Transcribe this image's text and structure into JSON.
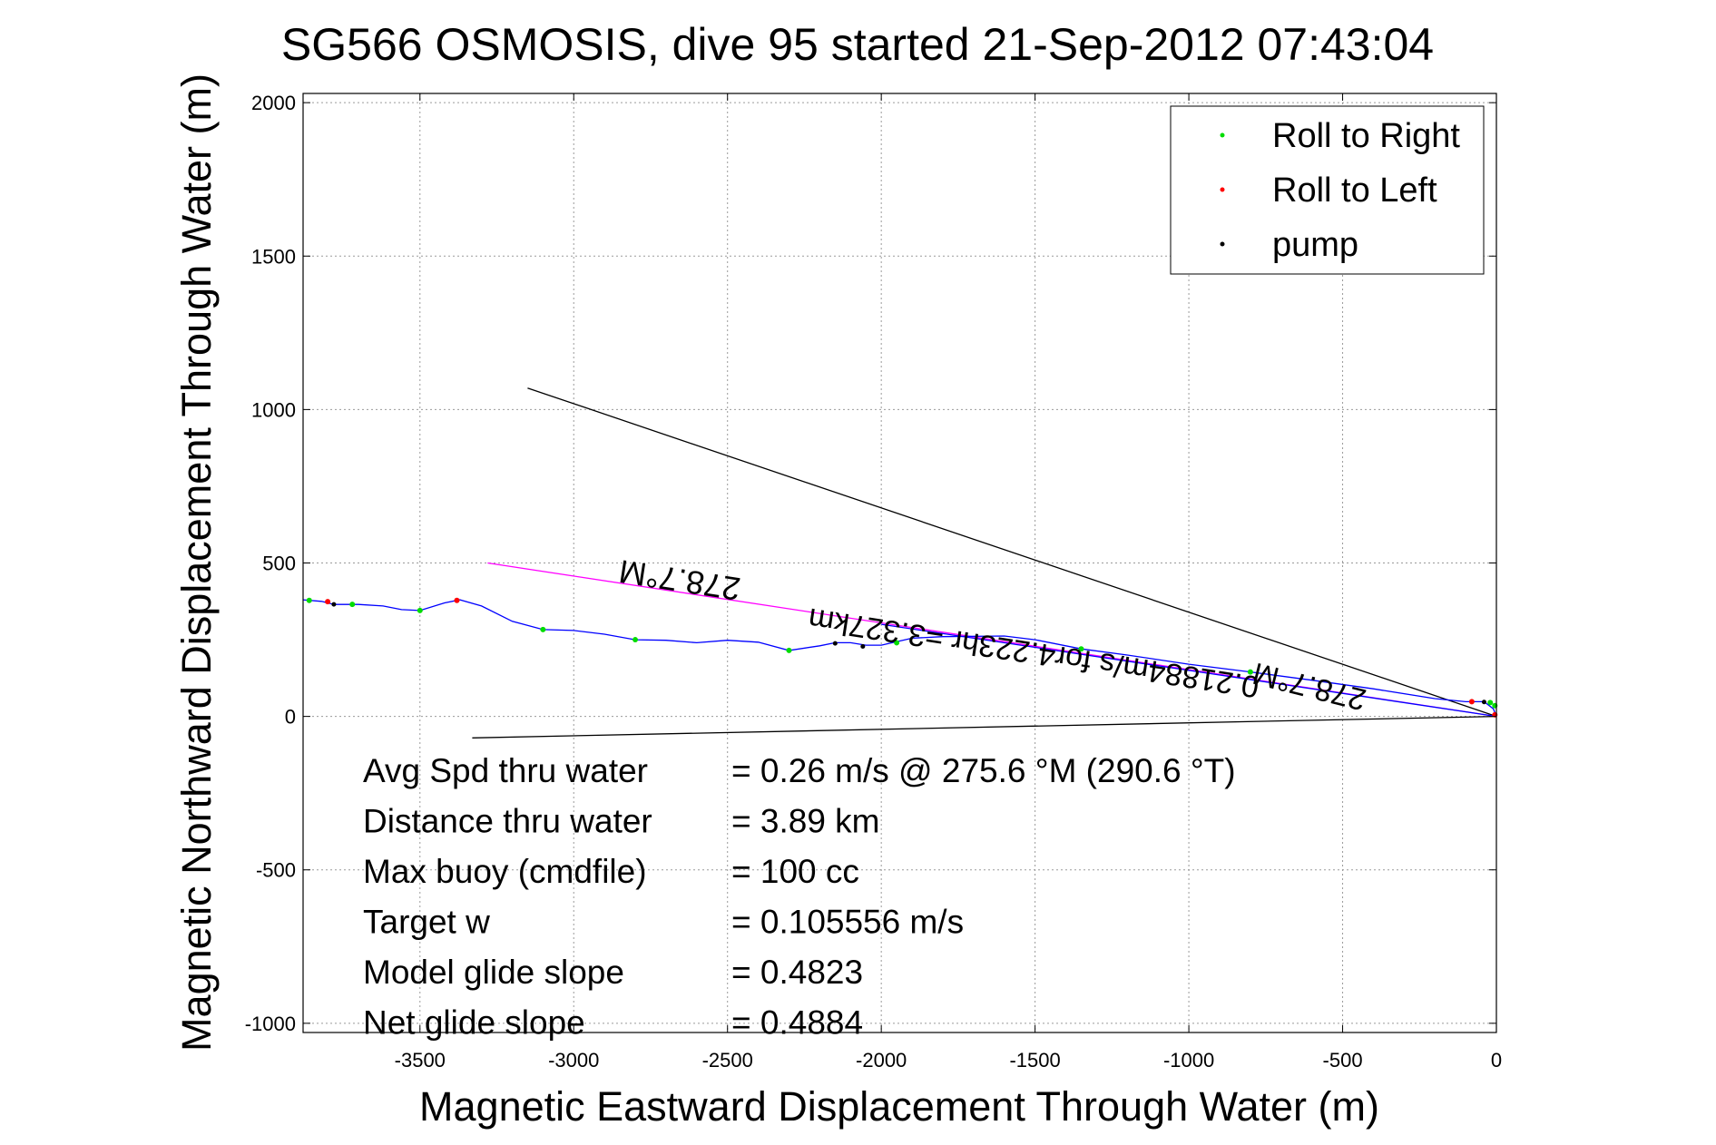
{
  "chart_data": {
    "type": "scatter",
    "title": "SG566 OSMOSIS, dive 95 started 21-Sep-2012 07:43:04",
    "xlabel": "Magnetic Eastward Displacement Through Water (m)",
    "ylabel": "Magnetic Northward Displacement Through Water (m)",
    "xlim": [
      -3880,
      0
    ],
    "ylim": [
      -1030,
      2030
    ],
    "xticks": [
      -3500,
      -3000,
      -2500,
      -2000,
      -1500,
      -1000,
      -500,
      0
    ],
    "yticks": [
      -1000,
      -500,
      0,
      500,
      1000,
      1500,
      2000
    ],
    "xtick_labels": [
      "-3500",
      "-3000",
      "-2500",
      "-2000",
      "-1500",
      "-1000",
      "-500",
      "0"
    ],
    "ytick_labels": [
      "-1000",
      "-500",
      "0",
      "500",
      "1000",
      "1500",
      "2000"
    ],
    "grid": true,
    "legend": {
      "position": "top-right",
      "entries": [
        {
          "label": "Roll to Right",
          "color": "#00dd00"
        },
        {
          "label": "Roll to Left",
          "color": "#ff0000"
        },
        {
          "label": "pump",
          "color": "#000000"
        }
      ]
    },
    "track": {
      "color": "#0000ff",
      "points": [
        [
          -3880,
          380
        ],
        [
          -3820,
          375
        ],
        [
          -3780,
          365
        ],
        [
          -3700,
          365
        ],
        [
          -3620,
          360
        ],
        [
          -3560,
          348
        ],
        [
          -3500,
          345
        ],
        [
          -3420,
          370
        ],
        [
          -3370,
          380
        ],
        [
          -3300,
          360
        ],
        [
          -3200,
          310
        ],
        [
          -3100,
          283
        ],
        [
          -3000,
          280
        ],
        [
          -2900,
          268
        ],
        [
          -2800,
          250
        ],
        [
          -2700,
          248
        ],
        [
          -2600,
          240
        ],
        [
          -2500,
          248
        ],
        [
          -2400,
          242
        ],
        [
          -2300,
          215
        ],
        [
          -2200,
          230
        ],
        [
          -2150,
          240
        ],
        [
          -2100,
          240
        ],
        [
          -2050,
          232
        ],
        [
          -2000,
          232
        ],
        [
          -1900,
          255
        ],
        [
          -1800,
          260
        ],
        [
          -1600,
          262
        ],
        [
          -1500,
          250
        ],
        [
          -1350,
          220
        ],
        [
          -1200,
          200
        ],
        [
          -1000,
          170
        ],
        [
          -800,
          145
        ],
        [
          -600,
          118
        ],
        [
          -400,
          90
        ],
        [
          -200,
          58
        ],
        [
          -100,
          48
        ],
        [
          -40,
          48
        ],
        [
          -10,
          25
        ],
        [
          0,
          0
        ]
      ]
    },
    "roll_right_points": [
      [
        -3860,
        378
      ],
      [
        -3720,
        365
      ],
      [
        -3500,
        345
      ],
      [
        -3100,
        283
      ],
      [
        -2800,
        250
      ],
      [
        -2300,
        215
      ],
      [
        -1950,
        240
      ],
      [
        -1350,
        220
      ],
      [
        -800,
        145
      ],
      [
        -20,
        45
      ],
      [
        -5,
        35
      ]
    ],
    "roll_left_points": [
      [
        -3800,
        374
      ],
      [
        -3380,
        378
      ],
      [
        -80,
        48
      ],
      [
        -5,
        5
      ]
    ],
    "pump_points": [
      [
        -3780,
        365
      ],
      [
        -2150,
        238
      ],
      [
        -2060,
        228
      ],
      [
        -40,
        47
      ]
    ],
    "lines": [
      {
        "name": "heading-line-upper",
        "color": "#000000",
        "from": [
          0,
          0
        ],
        "to": [
          -3150,
          1070
        ]
      },
      {
        "name": "heading-line-lower",
        "color": "#000000",
        "from": [
          0,
          0
        ],
        "to": [
          -3330,
          -70
        ]
      },
      {
        "name": "heading-line-magenta",
        "color": "#ff00ff",
        "from": [
          0,
          0
        ],
        "to": [
          -3280,
          500
        ]
      },
      {
        "name": "heading-line-blue",
        "color": "#0000ff",
        "from": [
          0,
          0
        ],
        "to": [
          -2000,
          300
        ]
      }
    ],
    "annotations": [
      {
        "text": "278.7°M",
        "x": -2650,
        "y": 480,
        "rotate": 188.7
      },
      {
        "text": "0.21884m/s for4.223hr =3.327km",
        "x": -1500,
        "y": 240,
        "rotate": 188.7
      },
      {
        "text": "278.7°M",
        "x": -600,
        "y": 130,
        "rotate": 194
      }
    ],
    "stats": [
      {
        "label": "Avg Spd thru water",
        "value": "=  0.26 m/s @ 275.6 °M (290.6 °T)"
      },
      {
        "label": "Distance thru water",
        "value": "=  3.89 km"
      },
      {
        "label": "Max buoy (cmdfile)",
        "value": "= 100 cc"
      },
      {
        "label": "Target w",
        "value": "= 0.105556 m/s"
      },
      {
        "label": "Model glide slope",
        "value": "= 0.4823"
      },
      {
        "label": "Net glide slope",
        "value": "= 0.4884"
      }
    ]
  }
}
